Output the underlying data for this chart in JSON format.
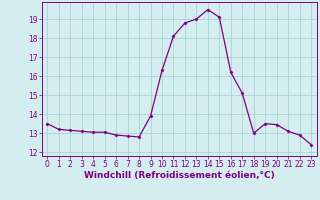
{
  "x": [
    0,
    1,
    2,
    3,
    4,
    5,
    6,
    7,
    8,
    9,
    10,
    11,
    12,
    13,
    14,
    15,
    16,
    17,
    18,
    19,
    20,
    21,
    22,
    23
  ],
  "y": [
    13.5,
    13.2,
    13.15,
    13.1,
    13.05,
    13.05,
    12.9,
    12.85,
    12.8,
    13.9,
    16.3,
    18.1,
    18.8,
    19.0,
    19.5,
    19.1,
    16.2,
    15.1,
    13.0,
    13.5,
    13.45,
    13.1,
    12.9,
    12.4
  ],
  "xlabel": "Windchill (Refroidissement éolien,°C)",
  "line_color": "#800080",
  "marker": "D",
  "marker_size": 1.5,
  "bg_color": "#d4eef0",
  "grid_color": "#aad4d8",
  "xlim": [
    -0.5,
    23.5
  ],
  "ylim": [
    11.8,
    19.9
  ],
  "xticks": [
    0,
    1,
    2,
    3,
    4,
    5,
    6,
    7,
    8,
    9,
    10,
    11,
    12,
    13,
    14,
    15,
    16,
    17,
    18,
    19,
    20,
    21,
    22,
    23
  ],
  "yticks": [
    12,
    13,
    14,
    15,
    16,
    17,
    18,
    19
  ],
  "tick_color": "#800080",
  "tick_fontsize": 5.5,
  "xlabel_fontsize": 6.5,
  "linewidth": 0.9
}
